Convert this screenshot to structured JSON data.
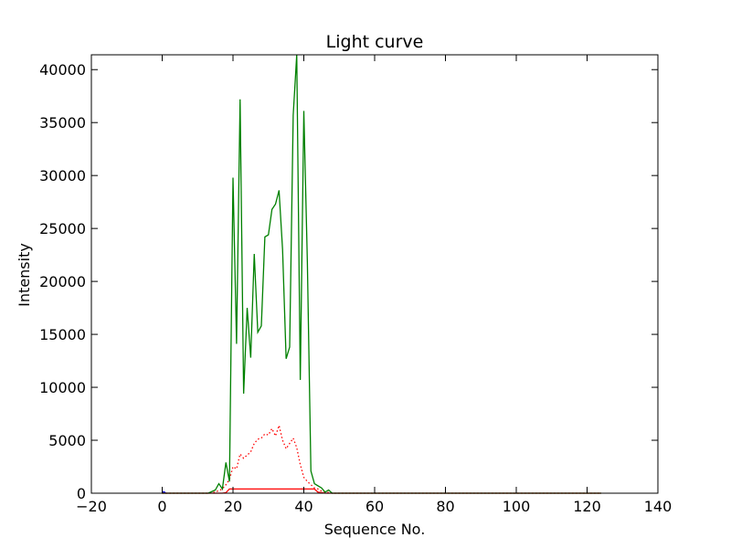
{
  "chart_data": {
    "type": "line",
    "title": "Light curve",
    "xlabel": "Sequence No.",
    "ylabel": "Intensity",
    "xlim": [
      -20,
      140
    ],
    "ylim": [
      0,
      41400
    ],
    "xticks": [
      -20,
      0,
      20,
      40,
      60,
      80,
      100,
      120,
      140
    ],
    "yticks": [
      0,
      5000,
      10000,
      15000,
      20000,
      25000,
      30000,
      35000,
      40000
    ],
    "grid": false,
    "series": [
      {
        "color": "#008000",
        "style": "solid",
        "x": [
          0,
          5,
          10,
          13,
          14,
          15,
          16,
          17,
          18,
          19,
          20,
          21,
          22,
          23,
          24,
          25,
          26,
          27,
          28,
          29,
          30,
          31,
          32,
          33,
          34,
          35,
          36,
          37,
          38,
          39,
          40,
          41,
          42,
          43,
          44,
          45,
          46,
          47,
          48,
          50,
          60,
          80,
          100,
          124
        ],
        "y": [
          0,
          0,
          0,
          0,
          150,
          300,
          900,
          400,
          2900,
          1100,
          29800,
          14100,
          37200,
          9400,
          17500,
          12800,
          22600,
          15200,
          15800,
          24200,
          24400,
          26800,
          27300,
          28600,
          23000,
          12700,
          13800,
          35700,
          41400,
          10700,
          36100,
          21800,
          2100,
          900,
          700,
          500,
          100,
          300,
          0,
          0,
          0,
          0,
          0,
          0
        ]
      },
      {
        "color": "#ff0000",
        "style": "dotted",
        "x": [
          0,
          5,
          10,
          13,
          15,
          17,
          18,
          19,
          20,
          21,
          22,
          23,
          24,
          25,
          26,
          27,
          28,
          29,
          30,
          31,
          32,
          33,
          34,
          35,
          36,
          37,
          38,
          39,
          40,
          41,
          42,
          43,
          44,
          45,
          46,
          47,
          48,
          50,
          60,
          80,
          100,
          124
        ],
        "y": [
          0,
          0,
          0,
          0,
          100,
          400,
          800,
          1300,
          2500,
          2300,
          3700,
          3300,
          3600,
          3900,
          4700,
          5100,
          5200,
          5600,
          5500,
          6100,
          5400,
          6400,
          5000,
          4200,
          4700,
          5200,
          4300,
          2700,
          1500,
          1100,
          800,
          500,
          400,
          200,
          100,
          60,
          0,
          0,
          0,
          0,
          0,
          0
        ]
      },
      {
        "color": "#ff0000",
        "style": "solid",
        "x": [
          0,
          10,
          17,
          18,
          19,
          43,
          44,
          46,
          60,
          80,
          100,
          124
        ],
        "y": [
          0,
          0,
          0,
          50,
          400,
          400,
          100,
          0,
          0,
          0,
          0,
          0
        ]
      },
      {
        "color": "#0000ff",
        "style": "solid",
        "x": [
          0,
          0.3,
          0.6,
          1
        ],
        "y": [
          0,
          120,
          120,
          0
        ]
      }
    ]
  }
}
